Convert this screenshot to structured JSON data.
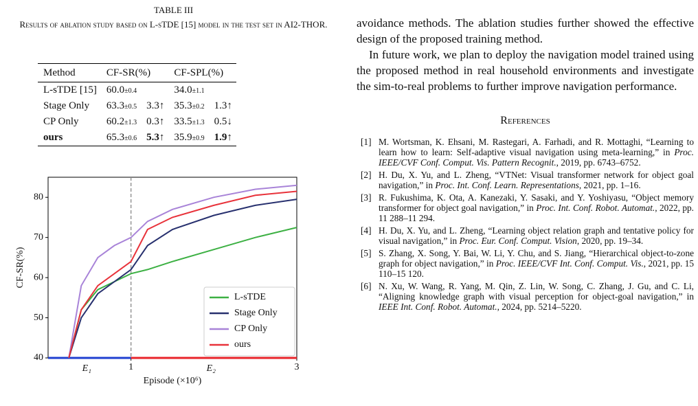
{
  "table": {
    "label": "TABLE III",
    "caption": "Results of ablation study based on L-sTDE [15] model in the test set in AI2-THOR.",
    "columns": [
      "Method",
      "CF-SR(%)",
      "CF-SPL(%)"
    ],
    "rows": [
      {
        "method": "L-sTDE [15]",
        "sr": "60.0",
        "sr_std": "±0.4",
        "spl": "34.0",
        "spl_std": "±1.1"
      },
      {
        "method": "Stage Only",
        "sr": "63.3",
        "sr_std": "±0.5",
        "sr_delta": "3.3↑",
        "spl": "35.3",
        "spl_std": "±0.2",
        "spl_delta": "1.3↑"
      },
      {
        "method": "CP Only",
        "sr": "60.2",
        "sr_std": "±1.3",
        "sr_delta": "0.3↑",
        "spl": "33.5",
        "spl_std": "±1.3",
        "spl_delta": "0.5↓"
      },
      {
        "method": "ours",
        "sr": "65.3",
        "sr_std": "±0.6",
        "sr_delta": "5.3↑",
        "spl": "35.9",
        "spl_std": "±0.9",
        "spl_delta": "1.9↑",
        "bold": true
      }
    ]
  },
  "chart_data": {
    "type": "line",
    "y_label": "CF-SR(%)",
    "x_label": "Episode (×10⁶)",
    "xlim": [
      0,
      3
    ],
    "ylim": [
      40,
      85
    ],
    "xticks": [
      1,
      3
    ],
    "yticks": [
      40,
      50,
      60,
      70,
      80
    ],
    "phase_boundary": 1,
    "phase_labels": [
      "E₁",
      "E₂"
    ],
    "phase_colors": [
      "#1f3fd0",
      "#e8232a"
    ],
    "legend": "lower right",
    "x": [
      0.25,
      0.4,
      0.6,
      0.8,
      1.0,
      1.2,
      1.5,
      2.0,
      2.5,
      3.0
    ],
    "series": [
      {
        "name": "L-sTDE",
        "color": "#3cb043",
        "values": [
          40,
          52,
          57,
          59,
          61,
          62,
          64,
          67,
          70,
          72.5
        ]
      },
      {
        "name": "Stage Only",
        "color": "#27306e",
        "values": [
          40,
          50,
          56,
          59,
          62,
          68,
          72,
          75.5,
          78,
          79.5
        ]
      },
      {
        "name": "CP Only",
        "color": "#a883d8",
        "values": [
          40,
          58,
          65,
          68,
          70,
          74,
          77,
          80,
          82,
          83
        ]
      },
      {
        "name": "ours",
        "color": "#e8323a",
        "values": [
          40,
          52,
          58,
          61,
          64,
          72,
          75,
          78,
          80.5,
          81.5
        ]
      }
    ]
  },
  "body": {
    "paragraphs": [
      "avoidance methods. The ablation studies further showed the effective design of the proposed training method.",
      "In future work, we plan to deploy the navigation model trained using the proposed method in real household environments and investigate the sim-to-real problems to further improve navigation performance."
    ],
    "references_title": "References",
    "references": [
      {
        "num": "[1]",
        "parts": [
          "M. Wortsman, K. Ehsani, M. Rastegari, A. Farhadi, and R. Mottaghi, “Learning to learn how to learn: Self-adaptive visual navigation using meta-learning,” in ",
          "Proc. IEEE/CVF Conf. Comput. Vis. Pattern Recognit.",
          ", 2019, pp. 6743–6752."
        ]
      },
      {
        "num": "[2]",
        "parts": [
          "H. Du, X. Yu, and L. Zheng, “VTNet: Visual transformer network for object goal navigation,” in ",
          "Proc. Int. Conf. Learn. Representations",
          ", 2021, pp. 1–16."
        ]
      },
      {
        "num": "[3]",
        "parts": [
          "R. Fukushima, K. Ota, A. Kanezaki, Y. Sasaki, and Y. Yoshiyasu, “Object memory transformer for object goal navigation,” in ",
          "Proc. Int. Conf. Robot. Automat.",
          ", 2022, pp. 11 288–11 294."
        ]
      },
      {
        "num": "[4]",
        "parts": [
          "H. Du, X. Yu, and L. Zheng, “Learning object relation graph and tentative policy for visual navigation,” in ",
          "Proc. Eur. Conf. Comput. Vision",
          ", 2020, pp. 19–34."
        ]
      },
      {
        "num": "[5]",
        "parts": [
          "S. Zhang, X. Song, Y. Bai, W. Li, Y. Chu, and S. Jiang, “Hierarchical object-to-zone graph for object navigation,” in ",
          "Proc. IEEE/CVF Int. Conf. Comput. Vis.",
          ", 2021, pp. 15 110–15 120."
        ]
      },
      {
        "num": "[6]",
        "parts": [
          "N. Xu, W. Wang, R. Yang, M. Qin, Z. Lin, W. Song, C. Zhang, J. Gu, and C. Li, “Aligning knowledge graph with visual perception for object-goal navigation,” in ",
          "IEEE Int. Conf. Robot. Automat.",
          ", 2024, pp. 5214–5220."
        ]
      }
    ]
  }
}
